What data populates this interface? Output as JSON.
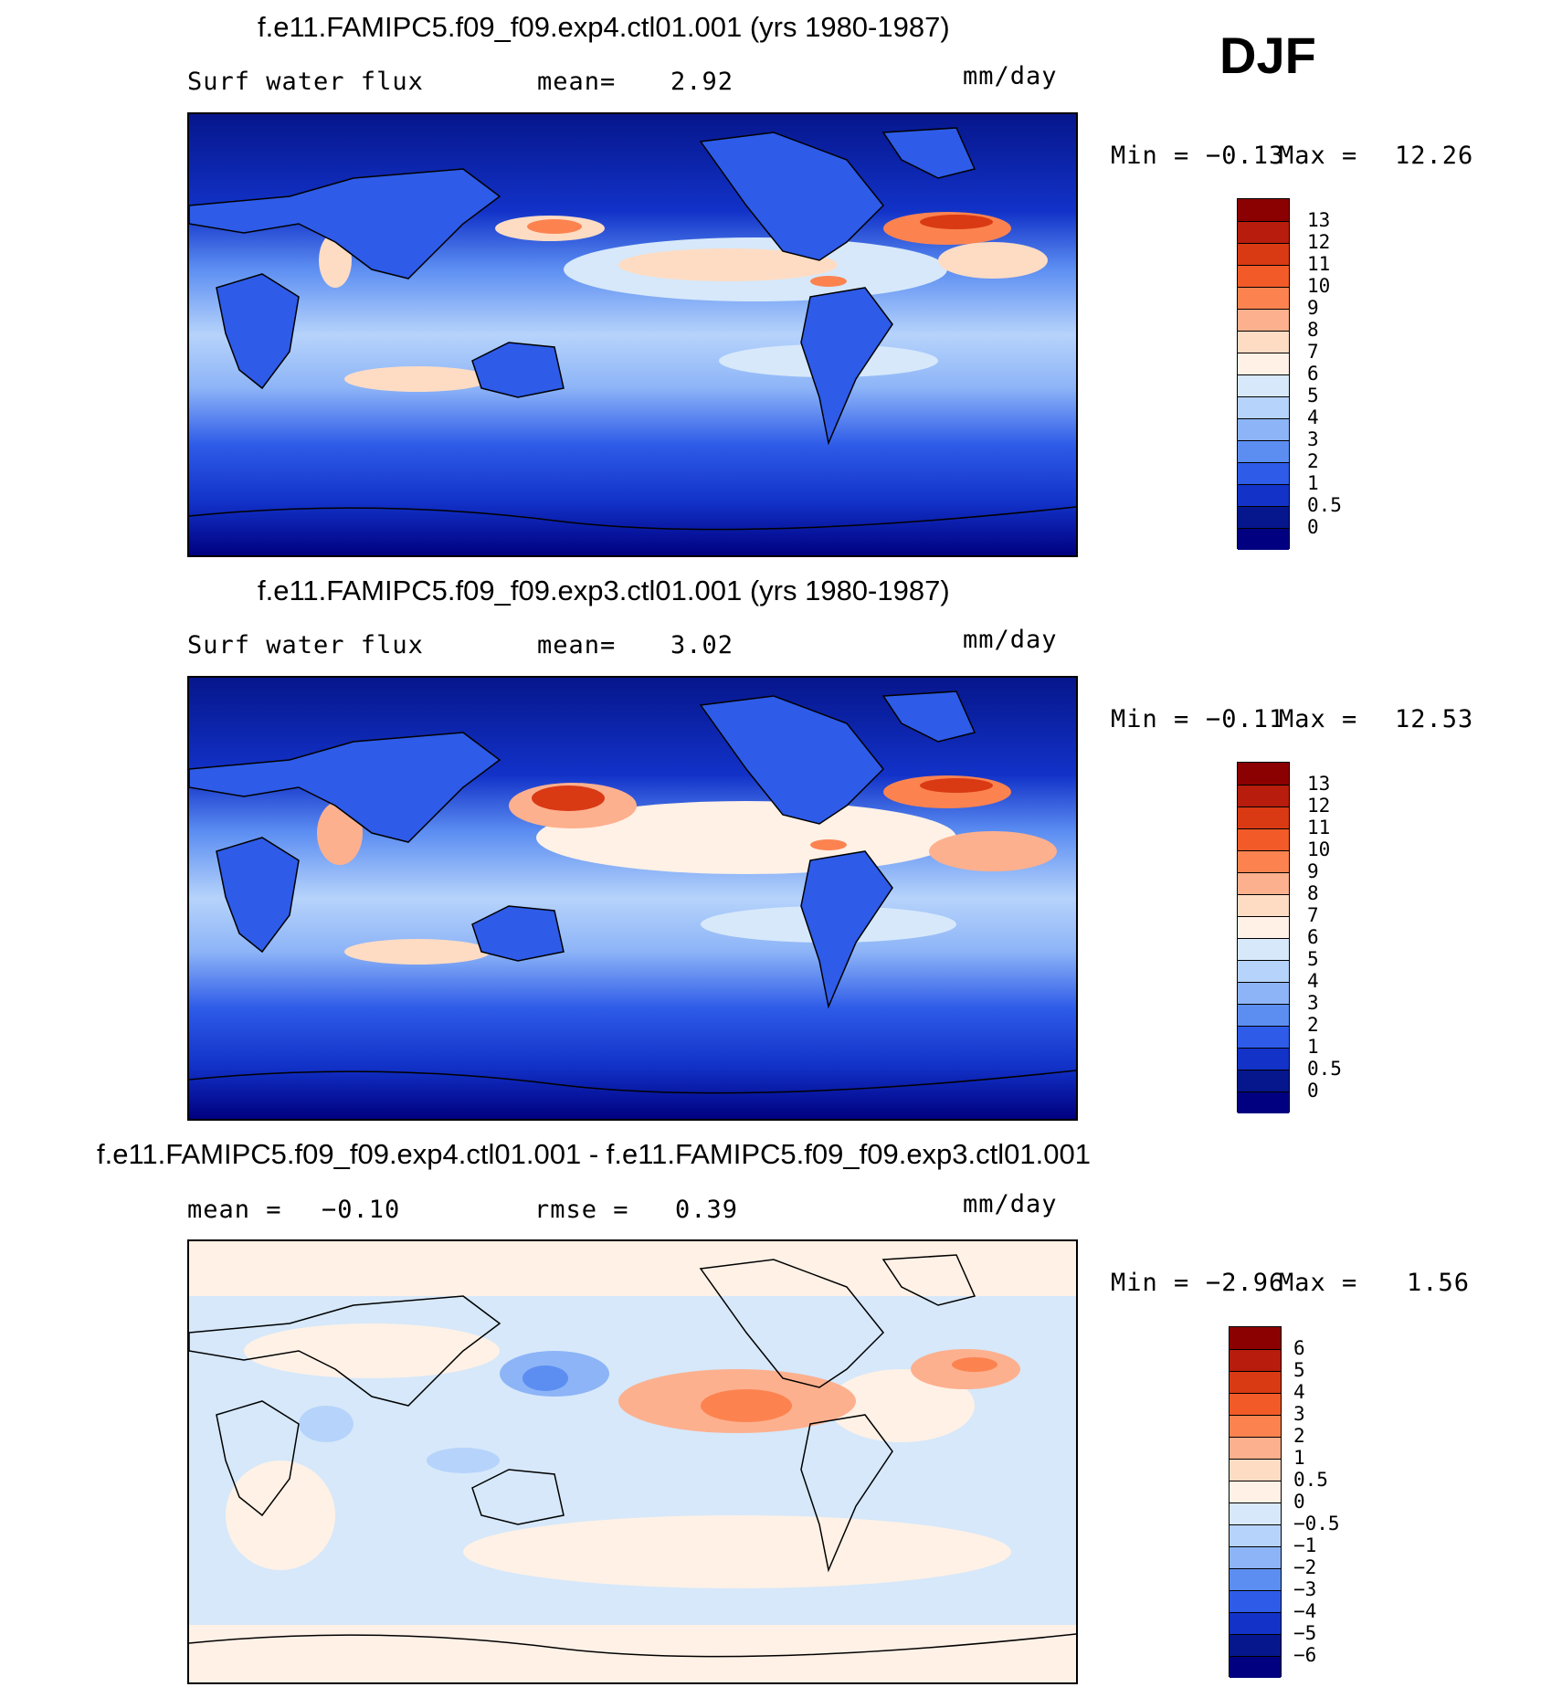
{
  "season": "DJF",
  "panels": [
    {
      "id": "exp4",
      "title": "f.e11.FAMIPC5.f09_f09.exp4.ctl01.001 (yrs 1980-1987)",
      "left_label": "Surf water flux",
      "mid_label": "mean=",
      "mid_value": "2.92",
      "units": "mm/day",
      "min_label": "Min =",
      "min_value": "−0.13",
      "max_label": "Max =",
      "max_value": "12.26",
      "colorbar_labels": [
        "13",
        "12",
        "11",
        "10",
        "9",
        "8",
        "7",
        "6",
        "5",
        "4",
        "3",
        "2",
        "1",
        "0.5",
        "0"
      ]
    },
    {
      "id": "exp3",
      "title": "f.e11.FAMIPC5.f09_f09.exp3.ctl01.001 (yrs 1980-1987)",
      "left_label": "Surf water flux",
      "mid_label": "mean=",
      "mid_value": "3.02",
      "units": "mm/day",
      "min_label": "Min =",
      "min_value": "−0.11",
      "max_label": "Max =",
      "max_value": "12.53",
      "colorbar_labels": [
        "13",
        "12",
        "11",
        "10",
        "9",
        "8",
        "7",
        "6",
        "5",
        "4",
        "3",
        "2",
        "1",
        "0.5",
        "0"
      ]
    },
    {
      "id": "diff",
      "title": "f.e11.FAMIPC5.f09_f09.exp4.ctl01.001 - f.e11.FAMIPC5.f09_f09.exp3.ctl01.001",
      "left_label": "mean =",
      "left_value": "−0.10",
      "mid_label": "rmse =",
      "mid_value": "0.39",
      "units": "mm/day",
      "min_label": "Min =",
      "min_value": "−2.96",
      "max_label": "Max =",
      "max_value": "1.56",
      "colorbar_labels": [
        "6",
        "5",
        "4",
        "3",
        "2",
        "1",
        "0.5",
        "0",
        "−0.5",
        "−1",
        "−2",
        "−3",
        "−4",
        "−5",
        "−6"
      ]
    }
  ],
  "colors": {
    "field_scale": [
      "#8b0000",
      "#b71c0c",
      "#d93a14",
      "#f25b28",
      "#fc8350",
      "#fdb08e",
      "#fedcc4",
      "#fff1e6",
      "#d6e8fa",
      "#b6d3fb",
      "#8db4f7",
      "#5c8ef2",
      "#2e5be8",
      "#1232c8",
      "#06168c",
      "#000080"
    ],
    "diff_scale": [
      "#8b0000",
      "#b71c0c",
      "#d93a14",
      "#f25b28",
      "#fc8350",
      "#fdb08e",
      "#fedcc4",
      "#fff1e6",
      "#d6e8fa",
      "#b6d3fb",
      "#8db4f7",
      "#5c8ef2",
      "#2e5be8",
      "#1232c8",
      "#06168c",
      "#000080"
    ]
  }
}
